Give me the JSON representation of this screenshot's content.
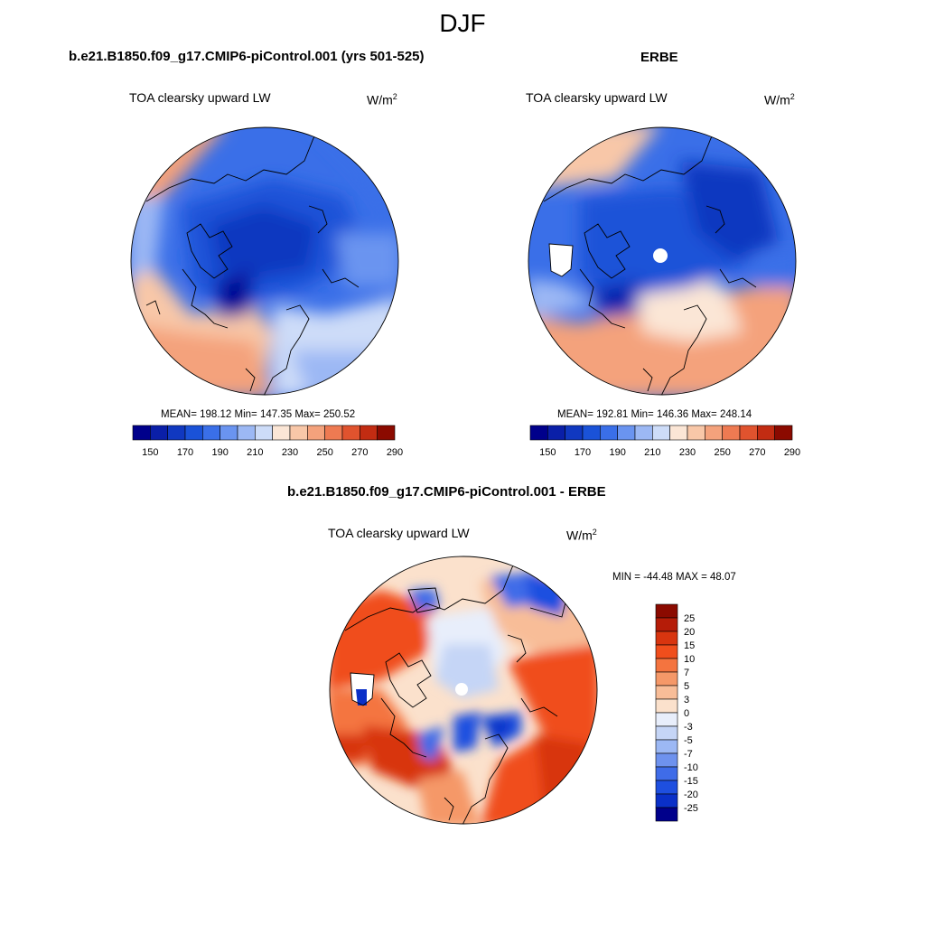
{
  "title": "DJF",
  "panels": [
    {
      "id": "model",
      "case_title": "b.e21.B1850.f09_g17.CMIP6-piControl.001 (yrs 501-525)",
      "variable": "TOA clearsky upward LW",
      "units_base": "W/m",
      "units_exp": "2",
      "stats": "MEAN= 198.12  Min= 147.35  Max= 250.52",
      "colorbar": {
        "colors": [
          "#00008b",
          "#0a1fa8",
          "#1038c0",
          "#1a52d8",
          "#3a6fe8",
          "#6a94f0",
          "#9cb8f4",
          "#cddcf8",
          "#fbe6d6",
          "#f8c7a8",
          "#f4a27c",
          "#ee7a52",
          "#e0532e",
          "#c22c12",
          "#8b0a00"
        ],
        "labels": [
          "150",
          "170",
          "190",
          "210",
          "230",
          "250",
          "270",
          "290"
        ]
      }
    },
    {
      "id": "obs",
      "case_title": "ERBE",
      "variable": "TOA clearsky upward LW",
      "units_base": "W/m",
      "units_exp": "2",
      "stats": "MEAN= 192.81  Min= 146.36  Max= 248.14",
      "colorbar": {
        "colors": [
          "#00008b",
          "#0a1fa8",
          "#1038c0",
          "#1a52d8",
          "#3a6fe8",
          "#6a94f0",
          "#9cb8f4",
          "#cddcf8",
          "#fbe6d6",
          "#f8c7a8",
          "#f4a27c",
          "#ee7a52",
          "#e0532e",
          "#c22c12",
          "#8b0a00"
        ],
        "labels": [
          "150",
          "170",
          "190",
          "210",
          "230",
          "250",
          "270",
          "290"
        ]
      }
    }
  ],
  "diff": {
    "case_title": "b.e21.B1850.f09_g17.CMIP6-piControl.001 - ERBE",
    "variable": "TOA clearsky upward LW",
    "units_base": "W/m",
    "units_exp": "2",
    "stats": "MIN = -44.48 MAX =  48.07",
    "colorbar": {
      "colors": [
        "#8b0a00",
        "#b51c08",
        "#d8350f",
        "#f04e1c",
        "#f4743f",
        "#f59868",
        "#f8bd98",
        "#fbe1cc",
        "#e8eefb",
        "#c5d5f6",
        "#9cb8f4",
        "#6e92ee",
        "#3f6ce8",
        "#1e4fe0",
        "#0a30c8",
        "#00008b"
      ],
      "labels": [
        "25",
        "20",
        "15",
        "10",
        "7",
        "5",
        "3",
        "0",
        "-3",
        "-5",
        "-7",
        "-10",
        "-15",
        "-20",
        "-25"
      ]
    }
  },
  "icons": [
    "north-polar-map"
  ]
}
